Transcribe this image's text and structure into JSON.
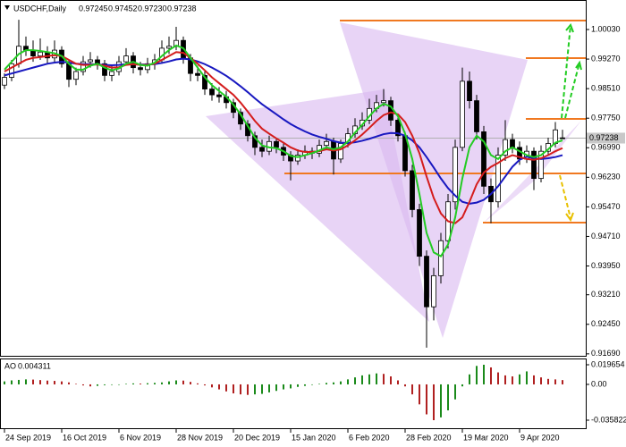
{
  "chart_data": {
    "type": "candlestick",
    "title": "USDCHF,Daily",
    "quote_labels": [
      "0.97245",
      "0.97452",
      "0.97230",
      "0.97238"
    ],
    "categories": [
      "24 Sep 2019",
      null,
      null,
      null,
      null,
      null,
      null,
      null,
      "16 Oct 2019",
      null,
      null,
      null,
      null,
      null,
      null,
      null,
      "6 Nov 2019",
      null,
      null,
      null,
      null,
      null,
      null,
      null,
      "28 Nov 2019",
      null,
      null,
      null,
      null,
      null,
      null,
      null,
      "20 Dec 2019",
      null,
      null,
      null,
      null,
      null,
      null,
      null,
      "15 Jan 2020",
      null,
      null,
      null,
      null,
      null,
      null,
      null,
      "6 Feb 2020",
      null,
      null,
      null,
      null,
      null,
      null,
      null,
      "28 Feb 2020",
      null,
      null,
      null,
      null,
      null,
      null,
      null,
      "19 Mar 2020",
      null,
      null,
      null,
      null,
      null,
      null,
      null,
      "9 Apr 2020",
      null,
      null,
      null,
      null,
      null,
      null
    ],
    "ohlc": [
      [
        0.986,
        0.989,
        0.985,
        0.988
      ],
      [
        0.988,
        0.9925,
        0.987,
        0.9915
      ],
      [
        0.9915,
        1.0028,
        0.9905,
        0.996
      ],
      [
        0.996,
        0.9985,
        0.9935,
        0.995
      ],
      [
        0.995,
        0.9975,
        0.992,
        0.9935
      ],
      [
        0.9935,
        0.998,
        0.9925,
        0.9945
      ],
      [
        0.9945,
        0.996,
        0.9915,
        0.993
      ],
      [
        0.993,
        0.9975,
        0.992,
        0.995
      ],
      [
        0.995,
        0.996,
        0.9905,
        0.9915
      ],
      [
        0.9915,
        0.9925,
        0.9855,
        0.9875
      ],
      [
        0.9875,
        0.9905,
        0.986,
        0.9895
      ],
      [
        0.9895,
        0.9935,
        0.9885,
        0.992
      ],
      [
        0.992,
        0.9945,
        0.9905,
        0.9925
      ],
      [
        0.9925,
        0.9935,
        0.99,
        0.9915
      ],
      [
        0.9915,
        0.9925,
        0.987,
        0.9885
      ],
      [
        0.9885,
        0.991,
        0.987,
        0.9895
      ],
      [
        0.9895,
        0.9935,
        0.9885,
        0.992
      ],
      [
        0.992,
        0.9955,
        0.991,
        0.9935
      ],
      [
        0.9935,
        0.9945,
        0.989,
        0.9905
      ],
      [
        0.9905,
        0.992,
        0.9885,
        0.99
      ],
      [
        0.99,
        0.993,
        0.989,
        0.9915
      ],
      [
        0.9915,
        0.994,
        0.99,
        0.9925
      ],
      [
        0.9925,
        0.9975,
        0.9915,
        0.9955
      ],
      [
        0.9955,
        0.9985,
        0.994,
        0.996
      ],
      [
        0.996,
        1.001,
        0.995,
        0.9975
      ],
      [
        0.9975,
        0.9985,
        0.9915,
        0.993
      ],
      [
        0.993,
        0.994,
        0.987,
        0.989
      ],
      [
        0.989,
        0.991,
        0.987,
        0.9885
      ],
      [
        0.9885,
        0.9895,
        0.9835,
        0.985
      ],
      [
        0.985,
        0.9865,
        0.982,
        0.9835
      ],
      [
        0.9835,
        0.9855,
        0.9815,
        0.983
      ],
      [
        0.983,
        0.9845,
        0.98,
        0.9815
      ],
      [
        0.9815,
        0.9825,
        0.9775,
        0.979
      ],
      [
        0.979,
        0.98,
        0.9745,
        0.976
      ],
      [
        0.976,
        0.977,
        0.9715,
        0.973
      ],
      [
        0.973,
        0.974,
        0.968,
        0.97
      ],
      [
        0.97,
        0.972,
        0.9675,
        0.969
      ],
      [
        0.969,
        0.973,
        0.968,
        0.9715
      ],
      [
        0.9715,
        0.9725,
        0.9685,
        0.97
      ],
      [
        0.97,
        0.971,
        0.9665,
        0.968
      ],
      [
        0.968,
        0.969,
        0.9615,
        0.9665
      ],
      [
        0.9665,
        0.9695,
        0.9655,
        0.968
      ],
      [
        0.968,
        0.9705,
        0.967,
        0.969
      ],
      [
        0.969,
        0.97,
        0.967,
        0.9685
      ],
      [
        0.9685,
        0.972,
        0.9675,
        0.9705
      ],
      [
        0.9705,
        0.9735,
        0.9695,
        0.9715
      ],
      [
        0.9715,
        0.9725,
        0.963,
        0.967
      ],
      [
        0.967,
        0.972,
        0.966,
        0.971
      ],
      [
        0.971,
        0.975,
        0.97,
        0.9735
      ],
      [
        0.9735,
        0.9775,
        0.9725,
        0.9755
      ],
      [
        0.9755,
        0.979,
        0.9745,
        0.977
      ],
      [
        0.977,
        0.9825,
        0.976,
        0.98
      ],
      [
        0.98,
        0.9835,
        0.979,
        0.9815
      ],
      [
        0.9815,
        0.985,
        0.9805,
        0.982
      ],
      [
        0.982,
        0.983,
        0.9755,
        0.977
      ],
      [
        0.977,
        0.9785,
        0.9715,
        0.973
      ],
      [
        0.973,
        0.974,
        0.9625,
        0.964
      ],
      [
        0.964,
        0.9655,
        0.952,
        0.954
      ],
      [
        0.954,
        0.9555,
        0.9395,
        0.942
      ],
      [
        0.942,
        0.9435,
        0.9185,
        0.929
      ],
      [
        0.929,
        0.939,
        0.9255,
        0.937
      ],
      [
        0.937,
        0.948,
        0.935,
        0.946
      ],
      [
        0.946,
        0.958,
        0.944,
        0.956
      ],
      [
        0.956,
        0.972,
        0.954,
        0.97
      ],
      [
        0.97,
        0.9905,
        0.969,
        0.987
      ],
      [
        0.987,
        0.9895,
        0.98,
        0.982
      ],
      [
        0.982,
        0.9835,
        0.972,
        0.974
      ],
      [
        0.974,
        0.9755,
        0.958,
        0.96
      ],
      [
        0.96,
        0.962,
        0.9505,
        0.956
      ],
      [
        0.956,
        0.97,
        0.9545,
        0.968
      ],
      [
        0.968,
        0.977,
        0.9665,
        0.972
      ],
      [
        0.972,
        0.9735,
        0.9685,
        0.97
      ],
      [
        0.97,
        0.9715,
        0.9655,
        0.967
      ],
      [
        0.967,
        0.9705,
        0.966,
        0.969
      ],
      [
        0.969,
        0.97,
        0.959,
        0.962
      ],
      [
        0.962,
        0.9705,
        0.961,
        0.969
      ],
      [
        0.969,
        0.9725,
        0.968,
        0.971
      ],
      [
        0.971,
        0.9765,
        0.97,
        0.9745
      ],
      [
        0.97245,
        0.97452,
        0.9723,
        0.97238
      ]
    ],
    "up_color": "#ffffff",
    "down_color": "#000000",
    "candle_outline": "#000000",
    "series": [
      {
        "color": "#1818c0",
        "values": [
          0.9885,
          0.989,
          0.9895,
          0.99,
          0.9905,
          0.991,
          0.9915,
          0.9918,
          0.992,
          0.9918,
          0.9915,
          0.9914,
          0.9914,
          0.9913,
          0.9912,
          0.9911,
          0.9912,
          0.9914,
          0.9914,
          0.9913,
          0.9913,
          0.9914,
          0.9917,
          0.9921,
          0.9926,
          0.9928,
          0.9926,
          0.9921,
          0.9914,
          0.9905,
          0.9895,
          0.9884,
          0.9871,
          0.9857,
          0.9842,
          0.9826,
          0.9811,
          0.9798,
          0.9785,
          0.9772,
          0.976,
          0.975,
          0.9741,
          0.9733,
          0.9727,
          0.9722,
          0.9716,
          0.9712,
          0.9711,
          0.9713,
          0.9717,
          0.9722,
          0.9728,
          0.9734,
          0.9737,
          0.9736,
          0.973,
          0.9718,
          0.97,
          0.9675,
          0.9648,
          0.962,
          0.9595,
          0.9576,
          0.956,
          0.9555,
          0.9558,
          0.9565,
          0.958,
          0.96,
          0.9625,
          0.965,
          0.9668,
          0.9676,
          0.9672,
          0.967,
          0.9672,
          0.9675,
          0.968
        ]
      },
      {
        "color": "#d41c1c",
        "values": [
          0.9895,
          0.9905,
          0.9915,
          0.9925,
          0.993,
          0.9932,
          0.9935,
          0.9937,
          0.9935,
          0.9925,
          0.9915,
          0.9912,
          0.9912,
          0.9913,
          0.991,
          0.9905,
          0.9906,
          0.9912,
          0.9914,
          0.9912,
          0.9912,
          0.9915,
          0.9925,
          0.9935,
          0.9945,
          0.9943,
          0.993,
          0.9915,
          0.9898,
          0.988,
          0.9865,
          0.985,
          0.9835,
          0.9815,
          0.9792,
          0.9768,
          0.9748,
          0.9735,
          0.9723,
          0.9712,
          0.97,
          0.9692,
          0.9688,
          0.9688,
          0.969,
          0.9695,
          0.9692,
          0.9695,
          0.9705,
          0.9718,
          0.9733,
          0.975,
          0.9768,
          0.9783,
          0.979,
          0.9785,
          0.9765,
          0.973,
          0.9685,
          0.9625,
          0.957,
          0.953,
          0.951,
          0.9505,
          0.952,
          0.956,
          0.9605,
          0.9635,
          0.965,
          0.966,
          0.9672,
          0.968,
          0.9675,
          0.967,
          0.9668,
          0.9672,
          0.968,
          0.969,
          0.9698
        ]
      },
      {
        "color": "#22cc22",
        "values": [
          0.99,
          0.992,
          0.994,
          0.995,
          0.995,
          0.9948,
          0.9945,
          0.9942,
          0.9935,
          0.9915,
          0.99,
          0.99,
          0.991,
          0.9915,
          0.9905,
          0.9898,
          0.9903,
          0.9915,
          0.992,
          0.9912,
          0.991,
          0.9918,
          0.9935,
          0.995,
          0.9962,
          0.9955,
          0.993,
          0.9905,
          0.988,
          0.986,
          0.9845,
          0.983,
          0.981,
          0.9785,
          0.9755,
          0.9725,
          0.9705,
          0.97,
          0.9698,
          0.969,
          0.9678,
          0.9675,
          0.968,
          0.9685,
          0.9692,
          0.97,
          0.9695,
          0.97,
          0.9715,
          0.9738,
          0.9758,
          0.978,
          0.98,
          0.9812,
          0.9805,
          0.978,
          0.9735,
          0.967,
          0.958,
          0.948,
          0.943,
          0.942,
          0.945,
          0.952,
          0.962,
          0.97,
          0.973,
          0.9715,
          0.968,
          0.967,
          0.969,
          0.97,
          0.969,
          0.968,
          0.9675,
          0.968,
          0.9695,
          0.9712,
          0.9718
        ]
      }
    ],
    "ylim": [
      0.9164,
      1.0072
    ],
    "yticks": [
      {
        "value": 1.0003,
        "label": "1.00030"
      },
      {
        "value": 0.9927,
        "label": "0.99270"
      },
      {
        "value": 0.9851,
        "label": "0.98510"
      },
      {
        "value": 0.9775,
        "label": "0.97750"
      },
      {
        "value": 0.9699,
        "label": "0.96990"
      },
      {
        "value": 0.9623,
        "label": "0.96230"
      },
      {
        "value": 0.9547,
        "label": "0.95470"
      },
      {
        "value": 0.9471,
        "label": "0.94710"
      },
      {
        "value": 0.9395,
        "label": "0.93950"
      },
      {
        "value": 0.9321,
        "label": "0.93210"
      },
      {
        "value": 0.9245,
        "label": "0.92450"
      },
      {
        "value": 0.9169,
        "label": "0.91690"
      }
    ],
    "grid": false,
    "ao": {
      "title": "AO",
      "value_label": "0.004311",
      "up_color": "#1a8a1a",
      "down_color": "#b02020",
      "values": [
        0.003,
        0.004,
        0.0045,
        0.005,
        0.0048,
        0.0043,
        0.0038,
        0.0035,
        0.003,
        0.002,
        0.0005,
        -0.001,
        -0.002,
        -0.0015,
        -0.0008,
        -0.0005,
        -0.0003,
        0.0005,
        0.001,
        0.0008,
        0.0012,
        0.0015,
        0.002,
        0.003,
        0.004,
        0.0038,
        0.0025,
        0.001,
        -0.001,
        -0.003,
        -0.005,
        -0.007,
        -0.009,
        -0.01,
        -0.0105,
        -0.01,
        -0.0095,
        -0.008,
        -0.0065,
        -0.005,
        -0.004,
        -0.0025,
        -0.0015,
        -0.0005,
        0.0005,
        0.0015,
        0.002,
        0.003,
        0.005,
        0.007,
        0.009,
        0.01,
        0.011,
        0.0105,
        0.008,
        0.004,
        -0.002,
        -0.01,
        -0.02,
        -0.03,
        -0.035822,
        -0.033,
        -0.026,
        -0.015,
        -0.002,
        0.01,
        0.0185,
        0.019654,
        0.017,
        0.012,
        0.009,
        0.008,
        0.01,
        0.013,
        0.009,
        0.007,
        0.0055,
        0.005,
        0.004311
      ],
      "ylim": [
        -0.035822,
        0.019654
      ],
      "yticks": [
        {
          "value": 0.019654,
          "label": "0.019654"
        },
        {
          "value": 0,
          "label": "0.00"
        },
        {
          "value": -0.035822,
          "label": "-0.035822"
        }
      ]
    }
  }
}
